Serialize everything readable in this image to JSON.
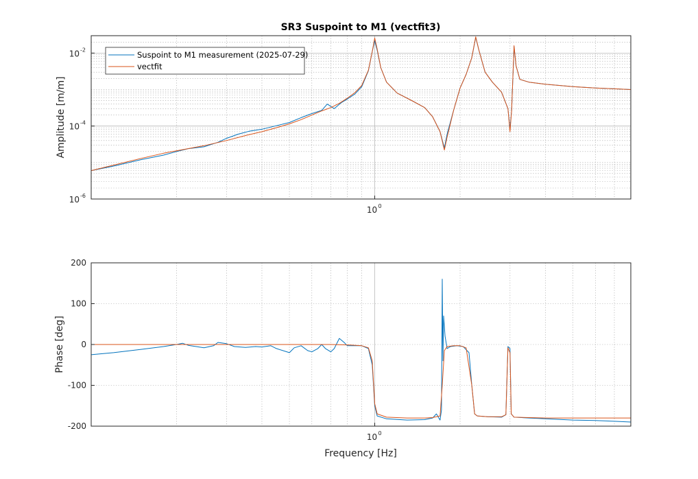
{
  "title": "SR3 Suspoint to M1 (vectfit3)",
  "colors": {
    "measurement": "#0072bd",
    "fit": "#d95319"
  },
  "chart_data": [
    {
      "type": "line",
      "panel": "amplitude",
      "title": "SR3 Suspoint to M1 (vectfit3)",
      "xlabel": "",
      "ylabel": "Amplitude [m/m]",
      "xscale": "log",
      "yscale": "log",
      "xlim": [
        0.1,
        8
      ],
      "ylim": [
        1e-06,
        0.03
      ],
      "x_ticks": [
        {
          "mantissa": "10",
          "exp": "0",
          "value": 1
        }
      ],
      "y_ticks": [
        {
          "mantissa": "10",
          "exp": "-2",
          "value": 0.01
        },
        {
          "mantissa": "10",
          "exp": "-4",
          "value": 0.0001
        },
        {
          "mantissa": "10",
          "exp": "-6",
          "value": 1e-06
        }
      ],
      "grid": true,
      "legend_placement": "top-left",
      "series": [
        {
          "name": "Suspoint to M1 measurement (2025-07-29)",
          "color": "#0072bd",
          "points": [
            [
              0.1,
              6e-06
            ],
            [
              0.12,
              8e-06
            ],
            [
              0.15,
              1.2e-05
            ],
            [
              0.18,
              1.6e-05
            ],
            [
              0.2,
              2e-05
            ],
            [
              0.22,
              2.4e-05
            ],
            [
              0.25,
              2.7e-05
            ],
            [
              0.28,
              3.6e-05
            ],
            [
              0.3,
              4.6e-05
            ],
            [
              0.33,
              6e-05
            ],
            [
              0.36,
              7.2e-05
            ],
            [
              0.4,
              8.2e-05
            ],
            [
              0.45,
              0.000102
            ],
            [
              0.5,
              0.000125
            ],
            [
              0.55,
              0.00017
            ],
            [
              0.6,
              0.00022
            ],
            [
              0.65,
              0.00027
            ],
            [
              0.68,
              0.0004
            ],
            [
              0.72,
              0.0003
            ],
            [
              0.76,
              0.00043
            ],
            [
              0.8,
              0.00055
            ],
            [
              0.85,
              0.00075
            ],
            [
              0.9,
              0.0012
            ],
            [
              0.95,
              0.0033
            ],
            [
              0.98,
              0.011
            ],
            [
              1.0,
              0.022
            ],
            [
              1.02,
              0.012
            ],
            [
              1.05,
              0.004
            ],
            [
              1.1,
              0.0016
            ],
            [
              1.2,
              0.0008
            ],
            [
              1.35,
              0.0005
            ],
            [
              1.5,
              0.00032
            ],
            [
              1.6,
              0.00018
            ],
            [
              1.7,
              7e-05
            ],
            [
              1.76,
              2.5e-05
            ],
            [
              1.8,
              6e-05
            ],
            [
              1.9,
              0.00028
            ],
            [
              2.0,
              0.0011
            ],
            [
              2.1,
              0.0026
            ],
            [
              2.2,
              0.0075
            ],
            [
              2.27,
              0.027
            ],
            [
              2.33,
              0.012
            ],
            [
              2.45,
              0.003
            ],
            [
              2.6,
              0.0016
            ],
            [
              2.8,
              0.00085
            ],
            [
              2.95,
              0.0003
            ],
            [
              3.0,
              8.5e-05
            ],
            [
              3.04,
              0.00027
            ],
            [
              3.1,
              0.015
            ],
            [
              3.15,
              0.0045
            ],
            [
              3.25,
              0.0019
            ],
            [
              3.5,
              0.0016
            ],
            [
              4.0,
              0.0014
            ],
            [
              5.0,
              0.0012
            ],
            [
              6.0,
              0.0011
            ],
            [
              7.0,
              0.00105
            ],
            [
              8.0,
              0.001
            ]
          ]
        },
        {
          "name": "vectfit",
          "color": "#d95319",
          "points": [
            [
              0.1,
              6e-06
            ],
            [
              0.12,
              8.5e-06
            ],
            [
              0.15,
              1.3e-05
            ],
            [
              0.18,
              1.8e-05
            ],
            [
              0.2,
              2.1e-05
            ],
            [
              0.25,
              2.9e-05
            ],
            [
              0.3,
              4e-05
            ],
            [
              0.35,
              5.5e-05
            ],
            [
              0.4,
              7e-05
            ],
            [
              0.45,
              9e-05
            ],
            [
              0.5,
              0.000115
            ],
            [
              0.55,
              0.00015
            ],
            [
              0.6,
              0.0002
            ],
            [
              0.65,
              0.00026
            ],
            [
              0.7,
              0.00032
            ],
            [
              0.75,
              0.00042
            ],
            [
              0.8,
              0.00058
            ],
            [
              0.85,
              0.00082
            ],
            [
              0.9,
              0.0013
            ],
            [
              0.95,
              0.0034
            ],
            [
              0.98,
              0.011
            ],
            [
              1.0,
              0.026
            ],
            [
              1.02,
              0.013
            ],
            [
              1.05,
              0.004
            ],
            [
              1.1,
              0.0016
            ],
            [
              1.2,
              0.0008
            ],
            [
              1.35,
              0.0005
            ],
            [
              1.5,
              0.00032
            ],
            [
              1.6,
              0.00018
            ],
            [
              1.7,
              7e-05
            ],
            [
              1.76,
              2.2e-05
            ],
            [
              1.8,
              5e-05
            ],
            [
              1.9,
              0.00028
            ],
            [
              2.0,
              0.0011
            ],
            [
              2.1,
              0.0026
            ],
            [
              2.2,
              0.0075
            ],
            [
              2.27,
              0.028
            ],
            [
              2.33,
              0.012
            ],
            [
              2.45,
              0.003
            ],
            [
              2.6,
              0.0016
            ],
            [
              2.8,
              0.00085
            ],
            [
              2.95,
              0.0003
            ],
            [
              3.0,
              7e-05
            ],
            [
              3.04,
              0.00027
            ],
            [
              3.1,
              0.016
            ],
            [
              3.15,
              0.0045
            ],
            [
              3.25,
              0.0019
            ],
            [
              3.5,
              0.0016
            ],
            [
              4.0,
              0.0014
            ],
            [
              5.0,
              0.0012
            ],
            [
              6.0,
              0.0011
            ],
            [
              7.0,
              0.00105
            ],
            [
              8.0,
              0.001
            ]
          ]
        }
      ]
    },
    {
      "type": "line",
      "panel": "phase",
      "title": "",
      "xlabel": "Frequency [Hz]",
      "ylabel": "Phase [deg]",
      "xscale": "log",
      "yscale": "linear",
      "xlim": [
        0.1,
        8
      ],
      "ylim": [
        -200,
        200
      ],
      "x_ticks": [
        {
          "mantissa": "10",
          "exp": "0",
          "value": 1
        }
      ],
      "y_ticks": [
        {
          "label": "200",
          "value": 200
        },
        {
          "label": "100",
          "value": 100
        },
        {
          "label": "0",
          "value": 0
        },
        {
          "label": "-100",
          "value": -100
        },
        {
          "label": "-200",
          "value": -200
        }
      ],
      "grid": true,
      "series": [
        {
          "name": "Suspoint to M1 measurement (2025-07-29)",
          "color": "#0072bd",
          "points": [
            [
              0.1,
              -25
            ],
            [
              0.12,
              -20
            ],
            [
              0.15,
              -12
            ],
            [
              0.18,
              -5
            ],
            [
              0.2,
              0
            ],
            [
              0.21,
              3
            ],
            [
              0.22,
              -2
            ],
            [
              0.25,
              -8
            ],
            [
              0.27,
              -3
            ],
            [
              0.28,
              5
            ],
            [
              0.3,
              2
            ],
            [
              0.32,
              -5
            ],
            [
              0.35,
              -7
            ],
            [
              0.38,
              -5
            ],
            [
              0.4,
              -6
            ],
            [
              0.43,
              -3
            ],
            [
              0.45,
              -10
            ],
            [
              0.5,
              -20
            ],
            [
              0.52,
              -8
            ],
            [
              0.55,
              -3
            ],
            [
              0.58,
              -15
            ],
            [
              0.6,
              -18
            ],
            [
              0.63,
              -10
            ],
            [
              0.65,
              0
            ],
            [
              0.67,
              -10
            ],
            [
              0.7,
              -18
            ],
            [
              0.72,
              -10
            ],
            [
              0.75,
              15
            ],
            [
              0.78,
              5
            ],
            [
              0.8,
              -3
            ],
            [
              0.85,
              -3
            ],
            [
              0.9,
              -3
            ],
            [
              0.95,
              -10
            ],
            [
              0.98,
              -50
            ],
            [
              1.0,
              -150
            ],
            [
              1.02,
              -175
            ],
            [
              1.1,
              -182
            ],
            [
              1.3,
              -185
            ],
            [
              1.5,
              -184
            ],
            [
              1.6,
              -180
            ],
            [
              1.65,
              -170
            ],
            [
              1.7,
              -185
            ],
            [
              1.72,
              -160
            ],
            [
              1.73,
              160
            ],
            [
              1.74,
              -40
            ],
            [
              1.75,
              70
            ],
            [
              1.77,
              20
            ],
            [
              1.8,
              -10
            ],
            [
              1.85,
              -5
            ],
            [
              1.95,
              -3
            ],
            [
              2.05,
              -5
            ],
            [
              2.15,
              -20
            ],
            [
              2.2,
              -100
            ],
            [
              2.25,
              -170
            ],
            [
              2.3,
              -175
            ],
            [
              2.5,
              -177
            ],
            [
              2.8,
              -178
            ],
            [
              2.9,
              -172
            ],
            [
              2.95,
              -5
            ],
            [
              3.0,
              -10
            ],
            [
              3.03,
              -170
            ],
            [
              3.1,
              -178
            ],
            [
              3.5,
              -180
            ],
            [
              4.0,
              -182
            ],
            [
              5.0,
              -185
            ],
            [
              6.0,
              -186
            ],
            [
              7.0,
              -188
            ],
            [
              8.0,
              -190
            ]
          ]
        },
        {
          "name": "vectfit",
          "color": "#d95319",
          "points": [
            [
              0.1,
              0
            ],
            [
              0.2,
              0
            ],
            [
              0.3,
              0
            ],
            [
              0.4,
              0
            ],
            [
              0.5,
              0
            ],
            [
              0.6,
              0
            ],
            [
              0.7,
              0
            ],
            [
              0.8,
              -1
            ],
            [
              0.9,
              -3
            ],
            [
              0.95,
              -8
            ],
            [
              0.98,
              -40
            ],
            [
              1.0,
              -145
            ],
            [
              1.02,
              -170
            ],
            [
              1.1,
              -178
            ],
            [
              1.3,
              -180
            ],
            [
              1.5,
              -180
            ],
            [
              1.6,
              -179
            ],
            [
              1.7,
              -175
            ],
            [
              1.73,
              -100
            ],
            [
              1.76,
              -15
            ],
            [
              1.8,
              -5
            ],
            [
              1.9,
              -3
            ],
            [
              2.0,
              -3
            ],
            [
              2.1,
              -8
            ],
            [
              2.2,
              -100
            ],
            [
              2.25,
              -170
            ],
            [
              2.3,
              -175
            ],
            [
              2.5,
              -177
            ],
            [
              2.8,
              -177
            ],
            [
              2.9,
              -172
            ],
            [
              2.95,
              -8
            ],
            [
              3.0,
              -20
            ],
            [
              3.03,
              -170
            ],
            [
              3.1,
              -178
            ],
            [
              4.0,
              -180
            ],
            [
              5.0,
              -180
            ],
            [
              6.0,
              -180
            ],
            [
              7.0,
              -180
            ],
            [
              8.0,
              -180
            ]
          ]
        }
      ]
    }
  ]
}
